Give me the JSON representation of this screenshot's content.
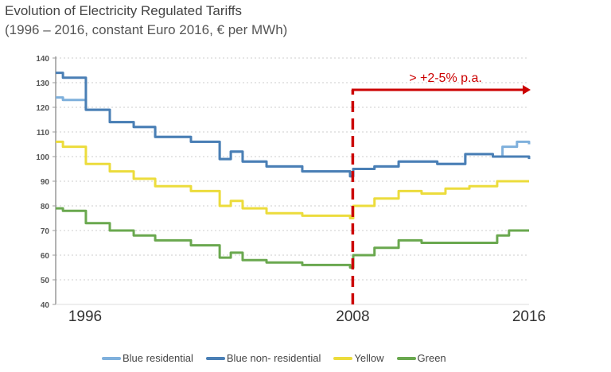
{
  "title": "Evolution of Electricity Regulated Tariffs",
  "subtitle": "(1996 – 2016, constant Euro 2016, € per MWh)",
  "chart_data": {
    "type": "line",
    "step": true,
    "xlim": [
      1995.7,
      2015.3
    ],
    "ylim": [
      40,
      140
    ],
    "yticks": [
      40,
      50,
      60,
      70,
      80,
      90,
      100,
      110,
      120,
      130,
      140
    ],
    "xtick_labels": [
      {
        "x": 1996,
        "label": "1996"
      },
      {
        "x": 2008,
        "label": "2008"
      },
      {
        "x": 2016,
        "label": "2016"
      }
    ],
    "grid": true,
    "legend_position": "bottom",
    "annotation": {
      "text": "> +2-5% p.a.",
      "x": 2008,
      "color": "#cc0000"
    },
    "series": [
      {
        "name": "Blue residential",
        "color": "#7fb0dc",
        "x": [
          1995.7,
          1996.0,
          1996.95,
          1997.94,
          1998.93,
          1999.82,
          2001.3,
          2002.49,
          2002.95,
          2003.44,
          2004.43,
          2005.91,
          2007.89,
          2008.02,
          2008.9,
          2009.9,
          2011.5,
          2012.66,
          2013.8,
          2014.2,
          2014.8,
          2015.3
        ],
        "y": [
          124,
          123,
          119,
          114,
          112,
          108,
          106,
          99,
          102,
          98,
          96,
          94,
          92,
          95,
          96,
          98,
          97,
          101,
          100,
          104,
          106,
          105
        ]
      },
      {
        "name": "Blue non- residential",
        "color": "#4a7fb5",
        "x": [
          1995.7,
          1996.0,
          1996.95,
          1997.94,
          1998.93,
          1999.82,
          2001.3,
          2002.49,
          2002.95,
          2003.44,
          2004.43,
          2005.91,
          2007.89,
          2008.02,
          2008.9,
          2009.9,
          2011.5,
          2012.66,
          2013.8,
          2015.3
        ],
        "y": [
          134,
          132,
          119,
          114,
          112,
          108,
          106,
          99,
          102,
          98,
          96,
          94,
          92,
          95,
          96,
          98,
          97,
          101,
          100,
          99
        ]
      },
      {
        "name": "Yellow",
        "color": "#ecdc3c",
        "x": [
          1995.7,
          1996.0,
          1996.95,
          1997.94,
          1998.93,
          1999.82,
          2001.3,
          2002.49,
          2002.95,
          2003.44,
          2004.43,
          2005.91,
          2007.89,
          2008.02,
          2008.9,
          2009.9,
          2010.85,
          2011.84,
          2012.83,
          2013.98,
          2015.13
        ],
        "y": [
          106,
          104,
          97,
          94,
          91,
          88,
          86,
          80,
          82,
          79,
          77,
          76,
          75,
          80,
          83,
          86,
          85,
          87,
          88,
          90,
          90
        ]
      },
      {
        "name": "Green",
        "color": "#6aa84f",
        "x": [
          1995.7,
          1996.0,
          1996.95,
          1997.94,
          1998.93,
          1999.82,
          2001.3,
          2002.49,
          2002.95,
          2003.44,
          2004.43,
          2005.91,
          2007.89,
          2008.02,
          2008.9,
          2009.9,
          2010.85,
          2013.16,
          2013.98,
          2014.47,
          2015.13
        ],
        "y": [
          79,
          78,
          73,
          70,
          68,
          66,
          64,
          59,
          61,
          58,
          57,
          56,
          55,
          60,
          63,
          66,
          65,
          65,
          68,
          70,
          70
        ]
      }
    ]
  }
}
